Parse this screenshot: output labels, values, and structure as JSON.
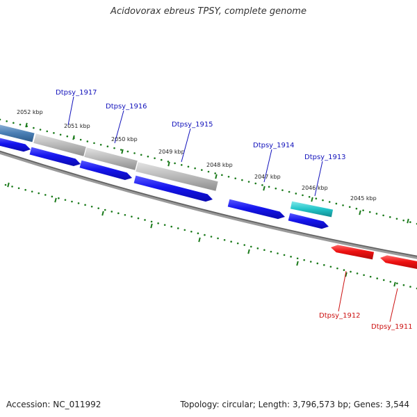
{
  "title": "Acidovorax ebreus TPSY, complete genome",
  "footer": {
    "accession": "Accession: NC_011992",
    "summary": "Topology: circular; Length: 3,796,573 bp; Genes: 3,544"
  },
  "colors": {
    "backbone": "#7a7a7a",
    "tick": "#1a7a1a",
    "forward_cds": "#1a1aee",
    "reverse_cds": "#ee1111",
    "rna": "#22c4c8",
    "highlight": "#b8b8b8",
    "gene_label_forward": "#1111bb",
    "gene_label_reverse": "#cc1111"
  },
  "scale_labels": [
    "2052 kbp",
    "2051 kbp",
    "2050 kbp",
    "2049 kbp",
    "2048 kbp",
    "2047 kbp",
    "2046 kbp",
    "2045 kbp"
  ],
  "genes": [
    {
      "label": "Dtpsy_1917",
      "strand": "forward",
      "type": "CDS"
    },
    {
      "label": "Dtpsy_1916",
      "strand": "forward",
      "type": "CDS"
    },
    {
      "label": "Dtpsy_1915",
      "strand": "forward",
      "type": "CDS"
    },
    {
      "label": "Dtpsy_1914",
      "strand": "forward",
      "type": "CDS"
    },
    {
      "label": "Dtpsy_1913",
      "strand": "forward",
      "type": "RNA"
    },
    {
      "label": "Dtpsy_1912",
      "strand": "reverse",
      "type": "CDS"
    },
    {
      "label": "Dtpsy_1911",
      "strand": "reverse",
      "type": "CDS"
    }
  ]
}
